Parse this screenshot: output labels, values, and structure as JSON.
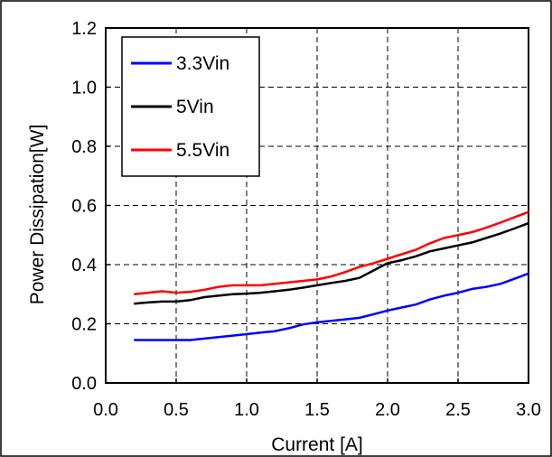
{
  "chart_data": {
    "type": "line",
    "title": "",
    "xlabel": "Current [A]",
    "ylabel": "Power Dissipation[W]",
    "xlim": [
      0.0,
      3.0
    ],
    "ylim": [
      0.0,
      1.2
    ],
    "xticks": [
      "0.0",
      "0.5",
      "1.0",
      "1.5",
      "2.0",
      "2.5",
      "3.0"
    ],
    "yticks": [
      "0.0",
      "0.2",
      "0.4",
      "0.6",
      "0.8",
      "1.0",
      "1.2"
    ],
    "grid": true,
    "legend_position": "top-left",
    "x": [
      0.2,
      0.3,
      0.4,
      0.5,
      0.6,
      0.7,
      0.8,
      0.9,
      1.0,
      1.1,
      1.2,
      1.3,
      1.4,
      1.5,
      1.6,
      1.7,
      1.8,
      1.9,
      2.0,
      2.1,
      2.2,
      2.3,
      2.4,
      2.5,
      2.6,
      2.7,
      2.8,
      2.9,
      3.0
    ],
    "series": [
      {
        "name": "3.3Vin",
        "color": "#0000ff",
        "values": [
          0.145,
          0.145,
          0.145,
          0.145,
          0.145,
          0.15,
          0.155,
          0.16,
          0.165,
          0.17,
          0.175,
          0.185,
          0.198,
          0.205,
          0.21,
          0.215,
          0.22,
          0.232,
          0.245,
          0.255,
          0.265,
          0.282,
          0.295,
          0.305,
          0.318,
          0.325,
          0.335,
          0.352,
          0.37
        ]
      },
      {
        "name": "5Vin",
        "color": "#000000",
        "values": [
          0.268,
          0.272,
          0.275,
          0.275,
          0.28,
          0.29,
          0.295,
          0.3,
          0.302,
          0.305,
          0.31,
          0.315,
          0.322,
          0.33,
          0.338,
          0.345,
          0.355,
          0.38,
          0.405,
          0.415,
          0.428,
          0.445,
          0.455,
          0.465,
          0.475,
          0.49,
          0.505,
          0.522,
          0.54
        ]
      },
      {
        "name": "5.5Vin",
        "color": "#ff0000",
        "values": [
          0.3,
          0.305,
          0.31,
          0.305,
          0.308,
          0.315,
          0.325,
          0.33,
          0.33,
          0.33,
          0.335,
          0.34,
          0.345,
          0.35,
          0.36,
          0.375,
          0.392,
          0.405,
          0.42,
          0.435,
          0.45,
          0.472,
          0.49,
          0.5,
          0.51,
          0.525,
          0.542,
          0.56,
          0.578
        ]
      }
    ]
  }
}
